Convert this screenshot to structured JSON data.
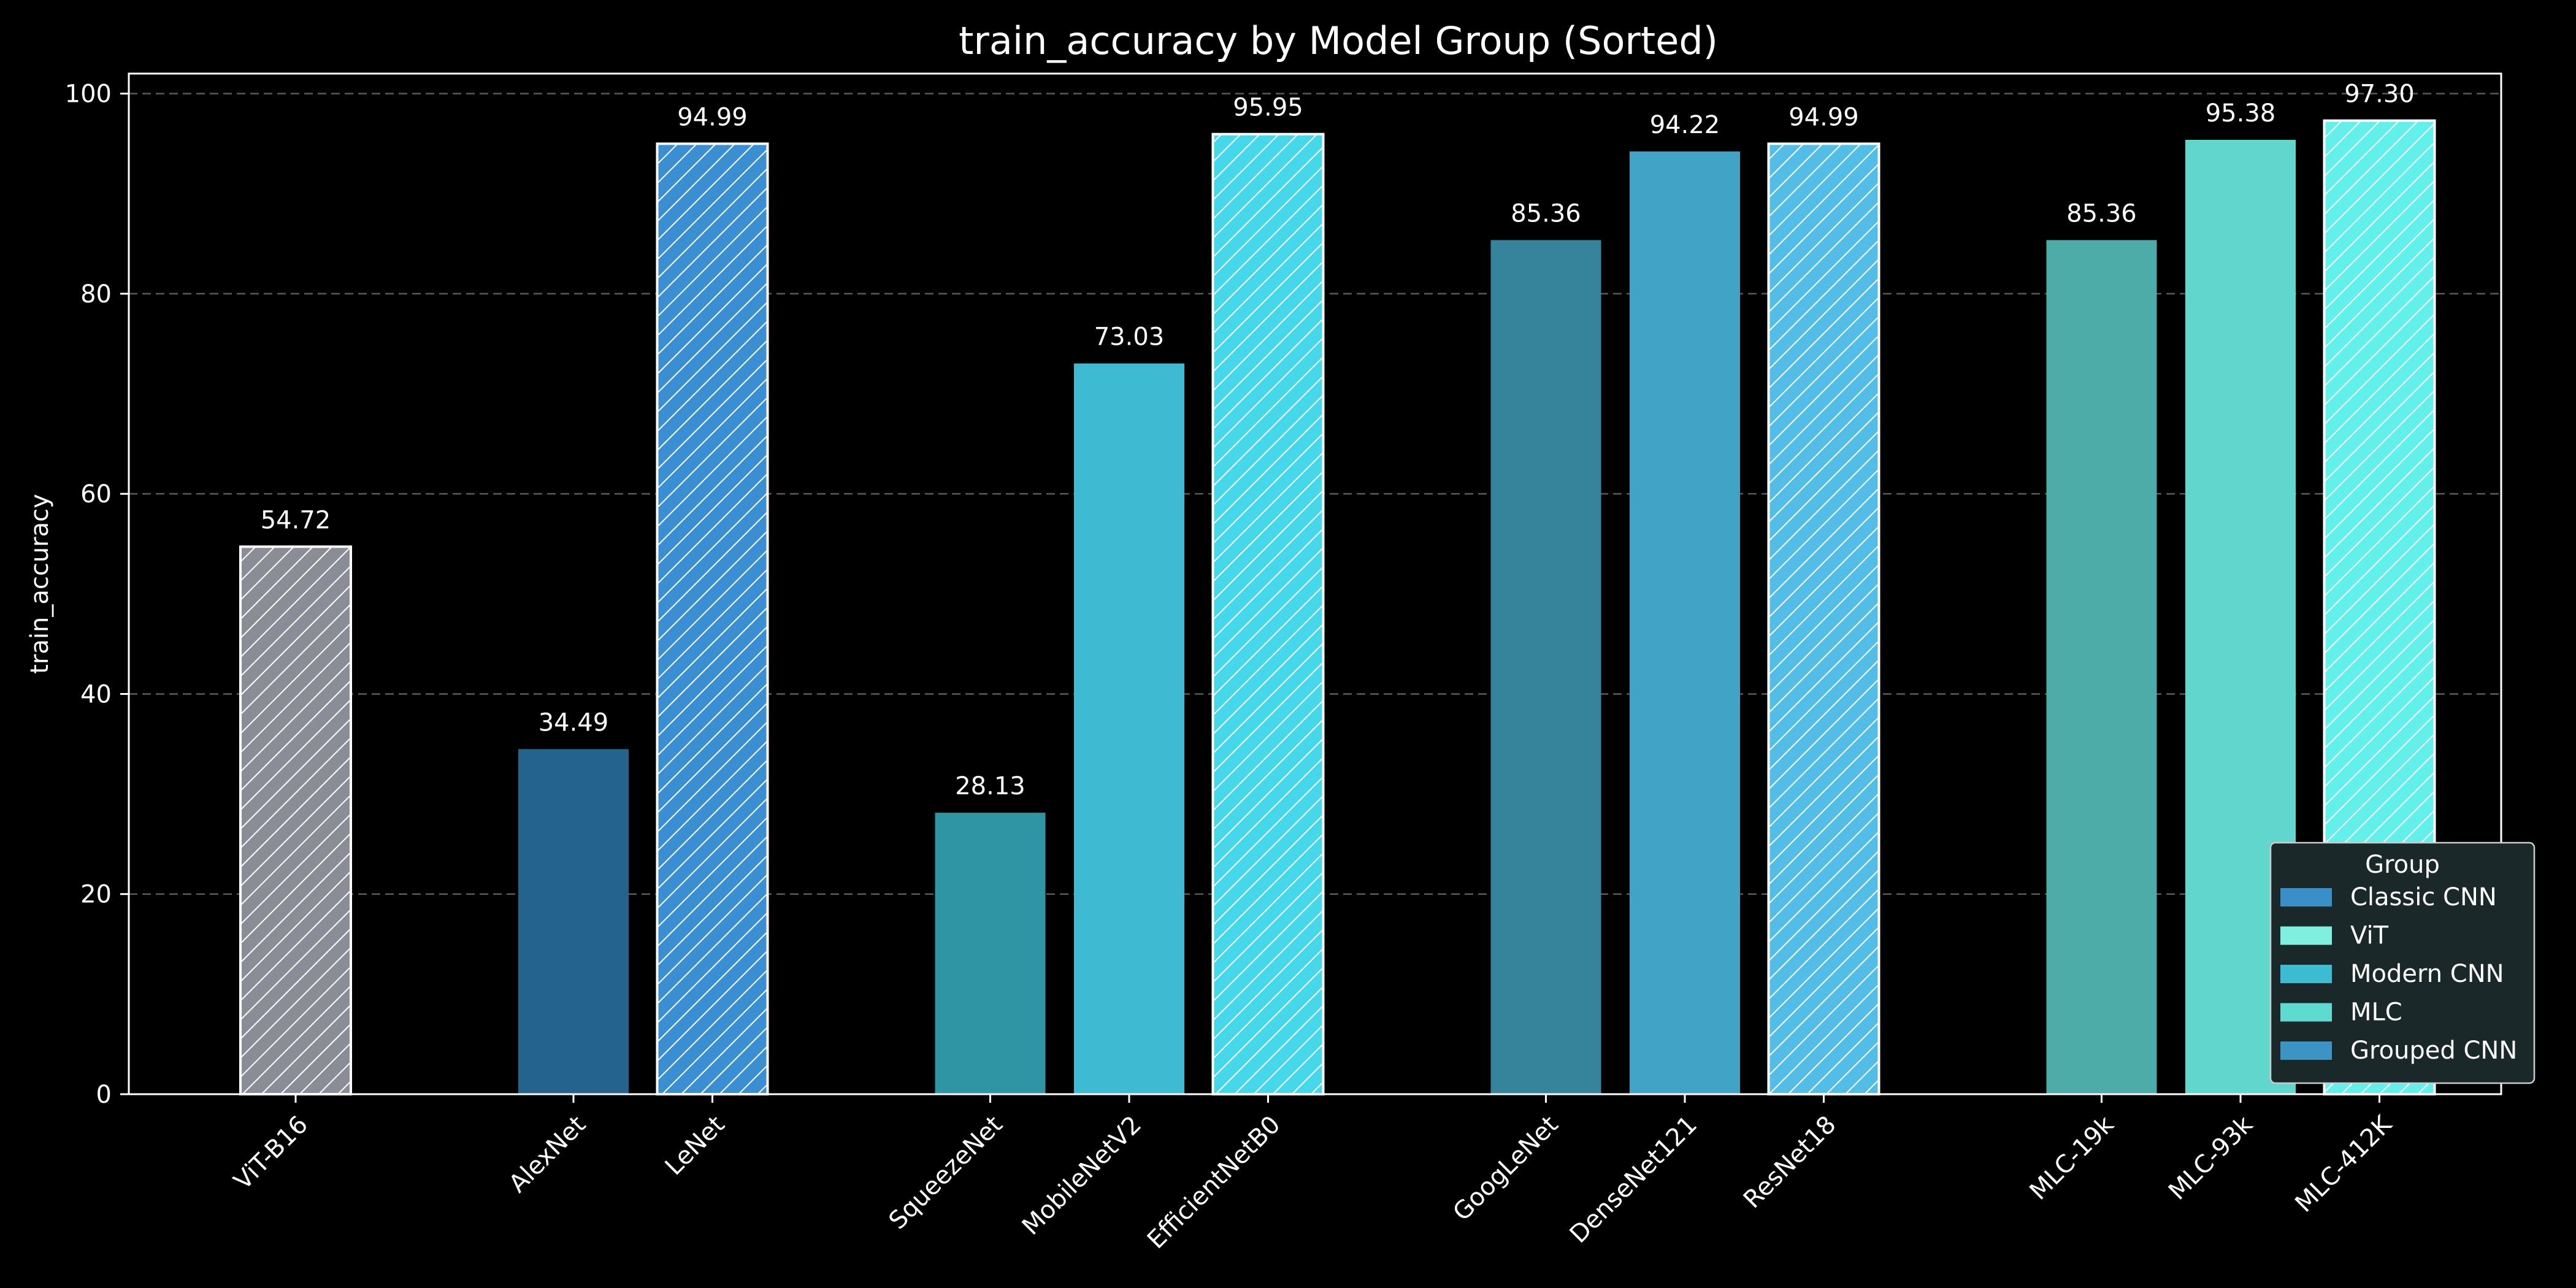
{
  "chart_data": {
    "type": "bar",
    "title": "train_accuracy by Model Group (Sorted)",
    "xlabel": "",
    "ylabel": "train_accuracy",
    "ylim": [
      0,
      102
    ],
    "yticks": [
      0,
      20,
      40,
      60,
      80,
      100
    ],
    "grid": true,
    "legend_title": "Group",
    "legend_position": "lower-right",
    "groups": [
      {
        "name": "Classic CNN",
        "color": "#3a8fc9"
      },
      {
        "name": "ViT",
        "color": "#7ff0e0"
      },
      {
        "name": "Modern CNN",
        "color": "#3bbcd0"
      },
      {
        "name": "MLC",
        "color": "#5fdad0"
      },
      {
        "name": "Grouped CNN",
        "color": "#3c94c4"
      }
    ],
    "bars": [
      {
        "label": "ViT-B16",
        "value": 54.72,
        "value_label": "54.72",
        "group": "ViT",
        "color": "#8a8d96",
        "hatch": true,
        "slot": 0
      },
      {
        "label": "AlexNet",
        "value": 34.49,
        "value_label": "34.49",
        "group": "Classic CNN",
        "color": "#24638e",
        "hatch": false,
        "slot": 2
      },
      {
        "label": "LeNet",
        "value": 94.99,
        "value_label": "94.99",
        "group": "Classic CNN",
        "color": "#3a8fd2",
        "hatch": true,
        "slot": 3
      },
      {
        "label": "SqueezeNet",
        "value": 28.13,
        "value_label": "28.13",
        "group": "Modern CNN",
        "color": "#2f95a5",
        "hatch": false,
        "slot": 5
      },
      {
        "label": "MobileNetV2",
        "value": 73.03,
        "value_label": "73.03",
        "group": "Modern CNN",
        "color": "#3ebad2",
        "hatch": false,
        "slot": 6
      },
      {
        "label": "EfficientNetB0",
        "value": 95.95,
        "value_label": "95.95",
        "group": "Modern CNN",
        "color": "#45d7ea",
        "hatch": true,
        "slot": 7
      },
      {
        "label": "GoogLeNet",
        "value": 85.36,
        "value_label": "85.36",
        "group": "Grouped CNN",
        "color": "#35849c",
        "hatch": false,
        "slot": 9
      },
      {
        "label": "DenseNet121",
        "value": 94.22,
        "value_label": "94.22",
        "group": "Grouped CNN",
        "color": "#41a3c5",
        "hatch": false,
        "slot": 10
      },
      {
        "label": "ResNet18",
        "value": 94.99,
        "value_label": "94.99",
        "group": "Grouped CNN",
        "color": "#52bde6",
        "hatch": true,
        "slot": 11
      },
      {
        "label": "MLC-19k",
        "value": 85.36,
        "value_label": "85.36",
        "group": "MLC",
        "color": "#4daca8",
        "hatch": false,
        "slot": 13
      },
      {
        "label": "MLC-93k",
        "value": 95.38,
        "value_label": "95.38",
        "group": "MLC",
        "color": "#61d6cd",
        "hatch": false,
        "slot": 14
      },
      {
        "label": "MLC-412K",
        "value": 97.3,
        "value_label": "97.30",
        "group": "MLC",
        "color": "#62f0eb",
        "hatch": true,
        "slot": 15
      }
    ]
  }
}
